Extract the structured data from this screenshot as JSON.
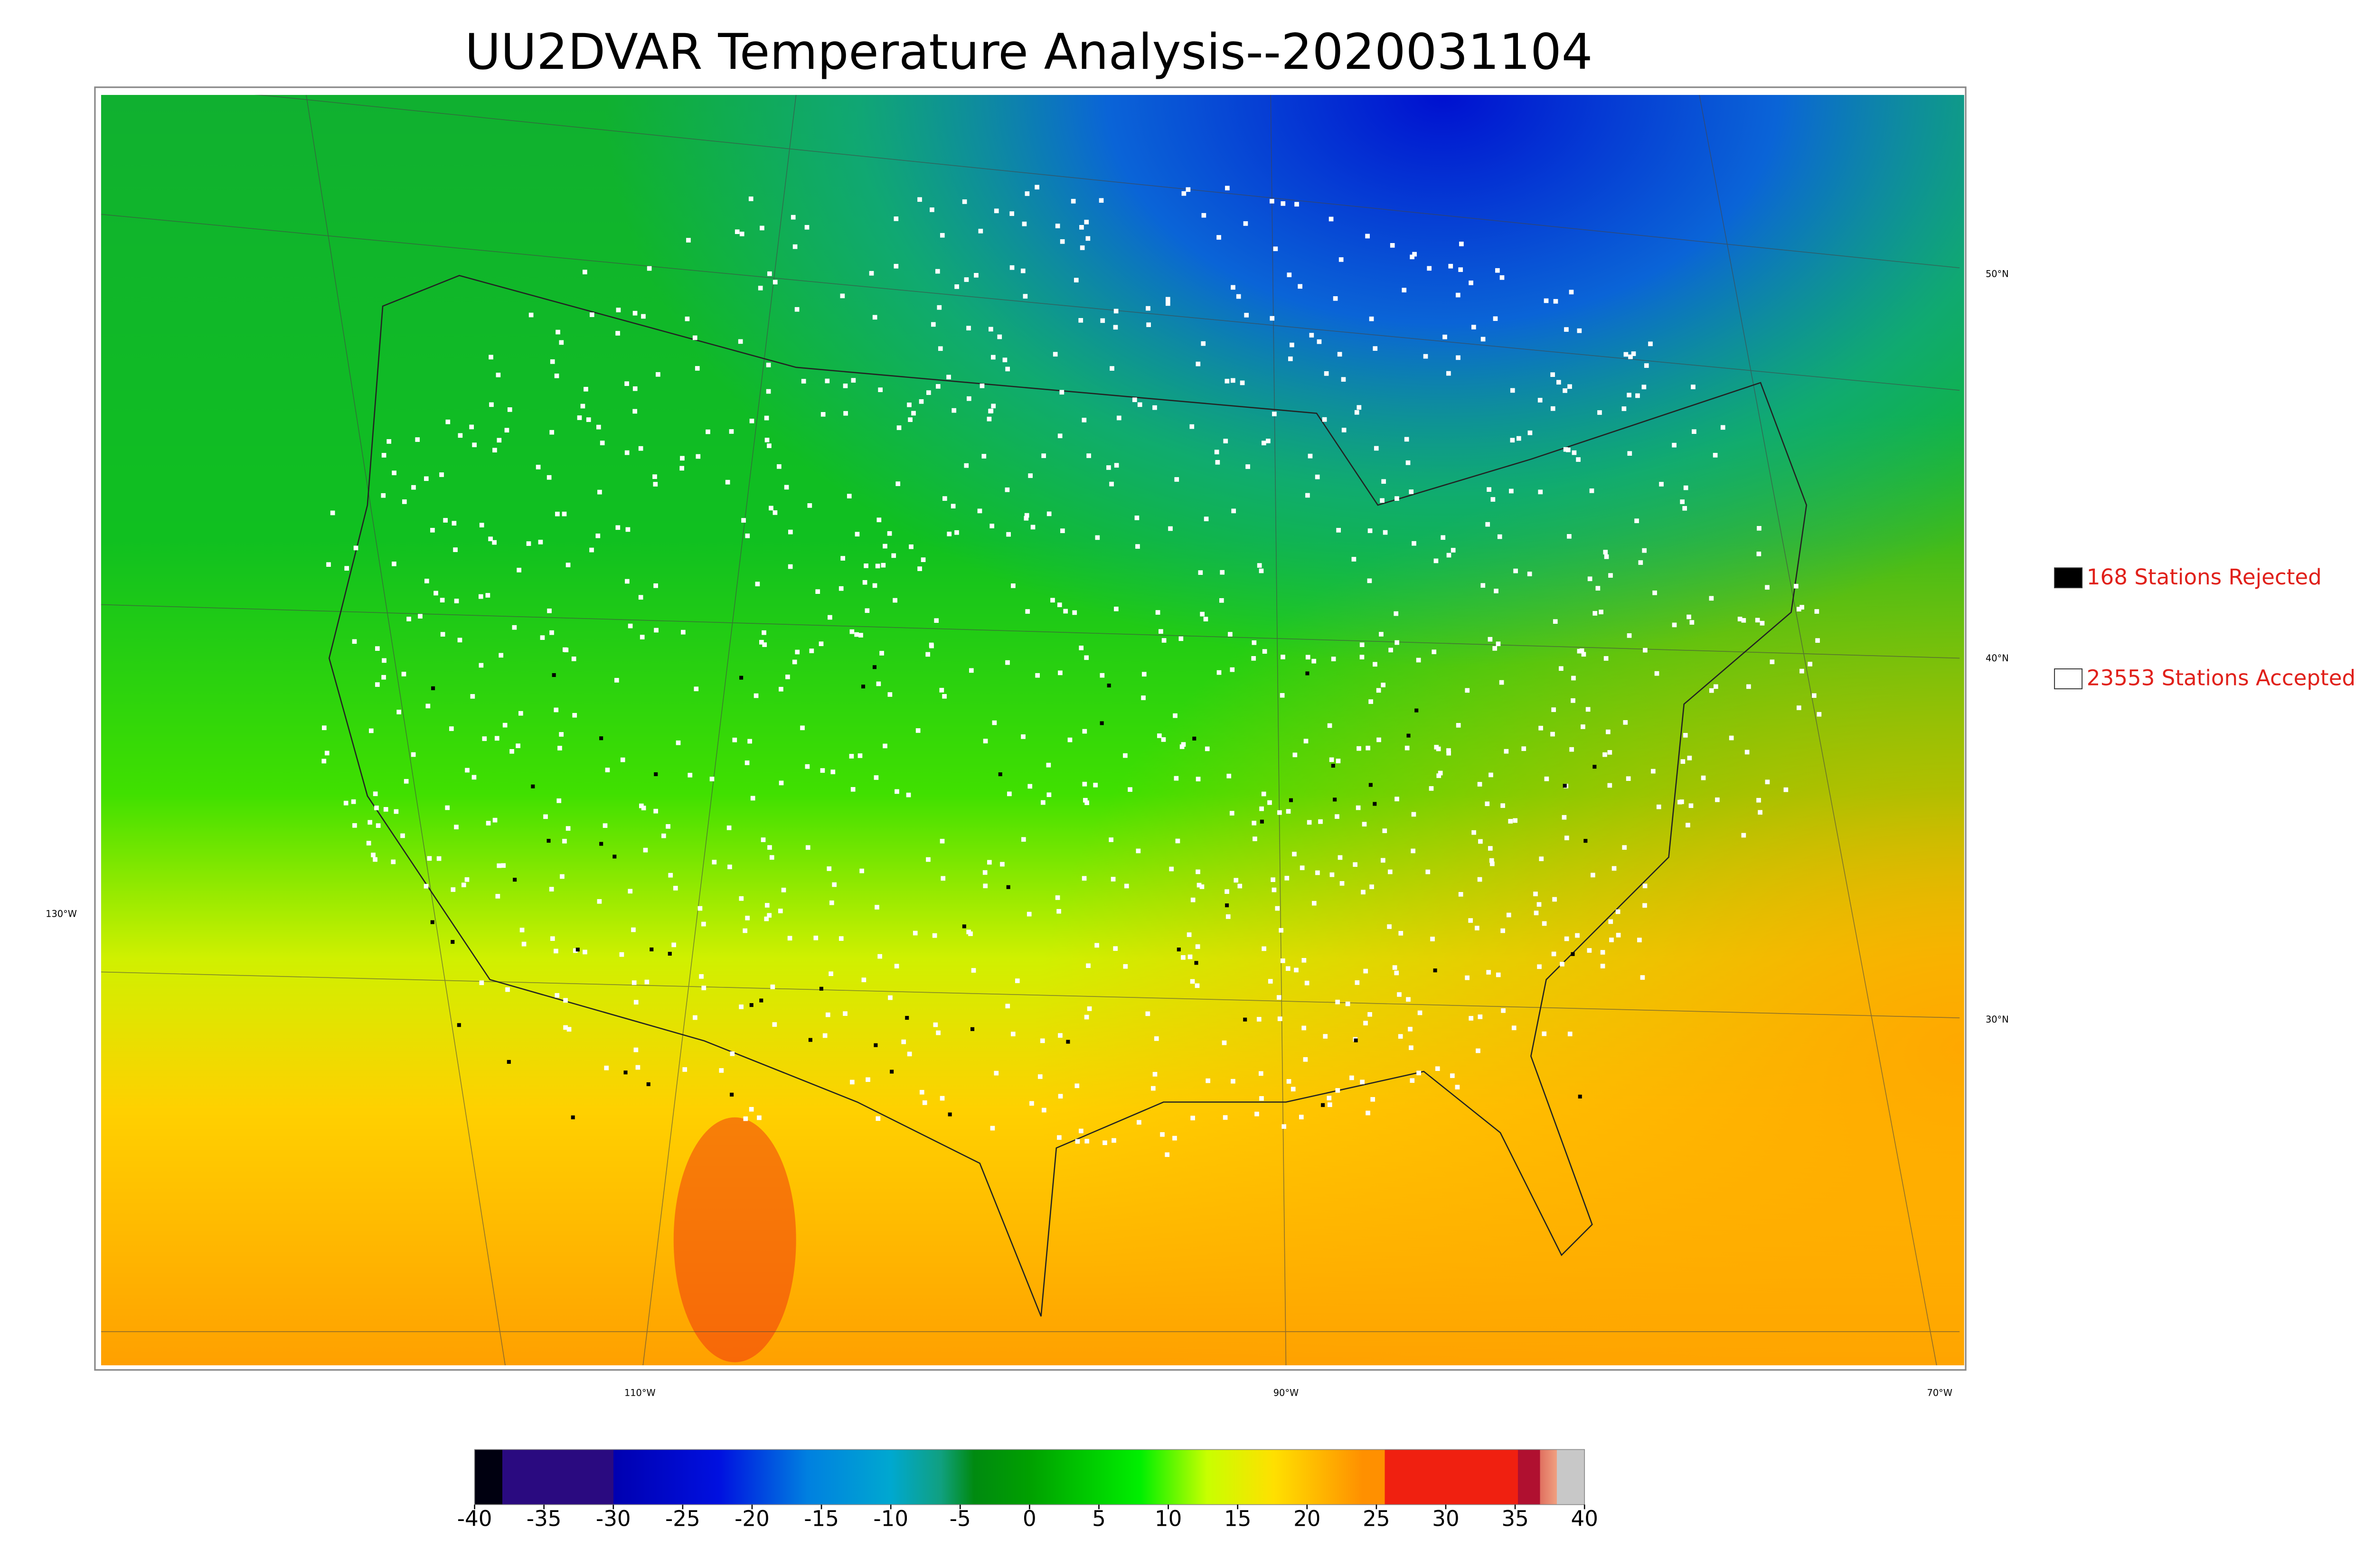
{
  "title": "UU2DVAR Temperature Analysis--2020031104",
  "legend": [
    {
      "label": "168 Stations Rejected",
      "color": "#000000"
    },
    {
      "label": "23553 Stations Accepted",
      "color": "#ffffff"
    }
  ],
  "latitude_labels": [
    "50°N",
    "40°N",
    "30°N"
  ],
  "longitude_labels": [
    "130°W",
    "110°W",
    "90°W",
    "70°W"
  ],
  "colorbar": {
    "lim": [
      -40,
      40
    ],
    "ticks": [
      -40,
      -35,
      -30,
      -25,
      -20,
      -15,
      -10,
      -5,
      0,
      5,
      10,
      15,
      20,
      25,
      30,
      35,
      40
    ]
  }
}
